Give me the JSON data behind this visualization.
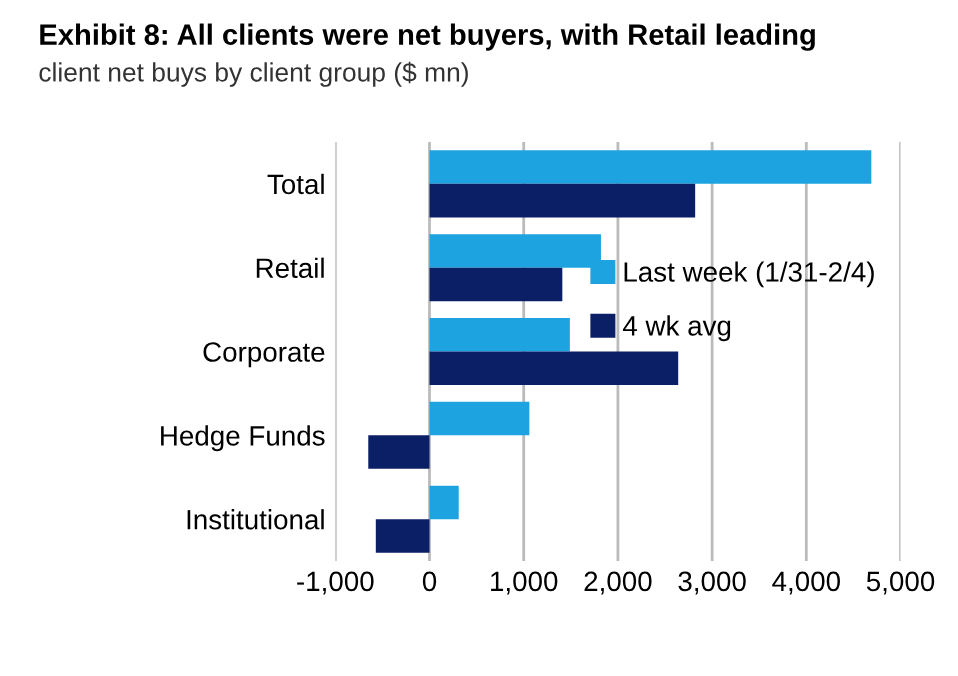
{
  "chart_data": {
    "type": "bar",
    "orientation": "horizontal",
    "title": "Exhibit 8: All clients were net buyers, with Retail leading",
    "subtitle": "client net buys by client group ($ mn)",
    "categories": [
      "Total",
      "Retail",
      "Corporate",
      "Hedge Funds",
      "Institutional"
    ],
    "series": [
      {
        "name": "Last week (1/31-2/4)",
        "color": "#1ca3e0",
        "values": [
          4690,
          1820,
          1490,
          1060,
          310
        ]
      },
      {
        "name": "4 wk avg",
        "color": "#0b1f66",
        "values": [
          2820,
          1410,
          2640,
          -650,
          -570
        ]
      }
    ],
    "xlim": [
      -1000,
      5000
    ],
    "xticks": [
      {
        "value": -1000,
        "label": "-1,000"
      },
      0,
      {
        "value": 1000,
        "label": "1,000"
      },
      {
        "value": 2000,
        "label": "2,000"
      },
      {
        "value": 3000,
        "label": "3,000"
      },
      {
        "value": 4000,
        "label": "4,000"
      },
      {
        "value": 5000,
        "label": "5,000"
      }
    ],
    "grid": "x",
    "legend": "right"
  }
}
